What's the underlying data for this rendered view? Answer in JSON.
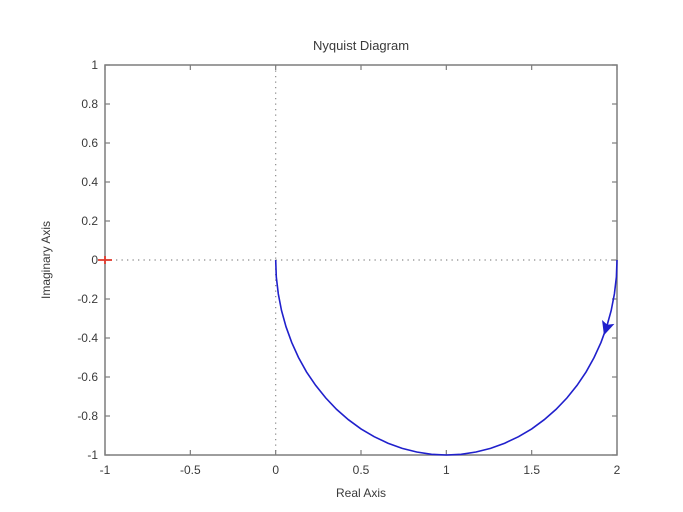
{
  "figure": {
    "background": "#ffffff"
  },
  "chart_data": {
    "type": "line",
    "title": "Nyquist Diagram",
    "xlabel": "Real Axis",
    "ylabel": "Imaginary Axis",
    "xlim": [
      -1,
      2
    ],
    "ylim": [
      -1,
      1
    ],
    "grid": "zero-lines-only",
    "legend": "none",
    "xticks": {
      "values": [
        -1,
        -0.5,
        0,
        0.5,
        1,
        1.5,
        2
      ],
      "labels": [
        "-1",
        "-0.5",
        "0",
        "0.5",
        "1",
        "1.5",
        "2"
      ]
    },
    "yticks": {
      "values": [
        -1,
        -0.8,
        -0.6,
        -0.4,
        -0.2,
        0,
        0.2,
        0.4,
        0.6,
        0.8,
        1
      ],
      "labels": [
        "-1",
        "-0.8",
        "-0.6",
        "-0.4",
        "-0.2",
        "0",
        "0.2",
        "0.4",
        "0.6",
        "0.8",
        "1"
      ]
    },
    "zero_lines": {
      "x": 0,
      "y": 0,
      "style": "dotted",
      "color": "#8a8a8a"
    },
    "series": [
      {
        "name": "nyquist-response",
        "color": "#2020cc",
        "shape": "lower semicircle, center (1,0), radius 1, traversed clockwise from (2,0) to (0,0)",
        "points": [
          [
            2.0,
            0.0
          ],
          [
            1.9962,
            -0.0872
          ],
          [
            1.9848,
            -0.1736
          ],
          [
            1.9659,
            -0.2588
          ],
          [
            1.9397,
            -0.342
          ],
          [
            1.9063,
            -0.4226
          ],
          [
            1.866,
            -0.5
          ],
          [
            1.8192,
            -0.5736
          ],
          [
            1.766,
            -0.6428
          ],
          [
            1.7071,
            -0.7071
          ],
          [
            1.6428,
            -0.766
          ],
          [
            1.5736,
            -0.8192
          ],
          [
            1.5,
            -0.866
          ],
          [
            1.4226,
            -0.9063
          ],
          [
            1.342,
            -0.9397
          ],
          [
            1.2588,
            -0.9659
          ],
          [
            1.1736,
            -0.9848
          ],
          [
            1.0872,
            -0.9962
          ],
          [
            1.0,
            -1.0
          ],
          [
            0.9128,
            -0.9962
          ],
          [
            0.8264,
            -0.9848
          ],
          [
            0.7412,
            -0.9659
          ],
          [
            0.658,
            -0.9397
          ],
          [
            0.5774,
            -0.9063
          ],
          [
            0.5,
            -0.866
          ],
          [
            0.4264,
            -0.8192
          ],
          [
            0.3572,
            -0.766
          ],
          [
            0.2929,
            -0.7071
          ],
          [
            0.234,
            -0.6428
          ],
          [
            0.1808,
            -0.5736
          ],
          [
            0.134,
            -0.5
          ],
          [
            0.0937,
            -0.4226
          ],
          [
            0.0603,
            -0.342
          ],
          [
            0.0341,
            -0.2588
          ],
          [
            0.0152,
            -0.1736
          ],
          [
            0.0038,
            -0.0872
          ],
          [
            0.0,
            0.0
          ]
        ]
      }
    ],
    "annotations": {
      "critical_point": {
        "x": -1,
        "y": 0,
        "marker": "+",
        "color": "#e23b2e"
      },
      "direction_arrow": {
        "x": 1.9397,
        "y": -0.342,
        "direction": [
          -0.342,
          -0.94
        ],
        "color": "#2020cc"
      }
    },
    "frame_color": "#7d7d7d",
    "text_color": "#3a3a3a"
  }
}
